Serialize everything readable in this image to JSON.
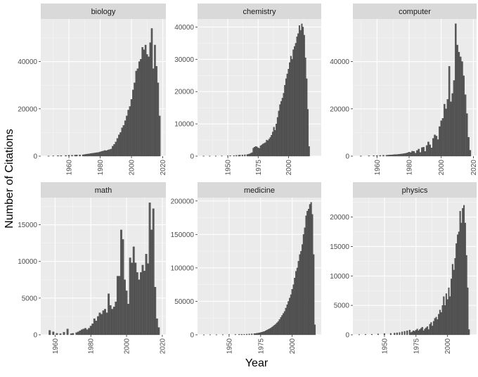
{
  "chart_data": {
    "type": "bar",
    "xlabel": "Year",
    "ylabel": "Number of Citations",
    "grid": true,
    "facets": [
      {
        "name": "biology",
        "xlim": [
          1942,
          2022
        ],
        "ylim": [
          0,
          58000
        ],
        "x_ticks": [
          1960,
          1980,
          2000,
          2020
        ],
        "y_ticks": [
          0,
          20000,
          40000
        ],
        "x": [
          1947,
          1950,
          1953,
          1955,
          1958,
          1960,
          1962,
          1964,
          1965,
          1967,
          1969,
          1970,
          1971,
          1972,
          1973,
          1974,
          1975,
          1976,
          1977,
          1978,
          1979,
          1980,
          1981,
          1982,
          1983,
          1984,
          1985,
          1986,
          1987,
          1988,
          1989,
          1990,
          1991,
          1992,
          1993,
          1994,
          1995,
          1996,
          1997,
          1998,
          1999,
          2000,
          2001,
          2002,
          2003,
          2004,
          2005,
          2006,
          2007,
          2008,
          2009,
          2010,
          2011,
          2012,
          2013,
          2014,
          2015,
          2016,
          2017,
          2018
        ],
        "values": [
          100,
          150,
          200,
          250,
          300,
          350,
          400,
          450,
          500,
          550,
          600,
          700,
          800,
          900,
          1000,
          1100,
          1200,
          1300,
          1400,
          1500,
          1600,
          1800,
          2000,
          2200,
          2400,
          2300,
          2600,
          2800,
          3000,
          4200,
          5000,
          6000,
          7500,
          9000,
          10000,
          12000,
          13000,
          15000,
          17000,
          19500,
          21000,
          24000,
          28000,
          31000,
          36000,
          37000,
          40000,
          41000,
          46000,
          45000,
          47000,
          43000,
          42000,
          48000,
          54000,
          37000,
          47000,
          38000,
          31000,
          17000
        ]
      },
      {
        "name": "chemistry",
        "xlim": [
          1925,
          2027
        ],
        "ylim": [
          0,
          42500
        ],
        "x_ticks": [
          1950,
          1975,
          2000
        ],
        "y_ticks": [
          0,
          10000,
          20000,
          30000,
          40000
        ],
        "x": [
          1930,
          1935,
          1940,
          1945,
          1950,
          1952,
          1955,
          1957,
          1959,
          1960,
          1962,
          1964,
          1966,
          1967,
          1968,
          1969,
          1970,
          1971,
          1972,
          1973,
          1974,
          1975,
          1976,
          1977,
          1978,
          1979,
          1980,
          1981,
          1982,
          1983,
          1984,
          1985,
          1986,
          1987,
          1988,
          1989,
          1990,
          1991,
          1992,
          1993,
          1994,
          1995,
          1996,
          1997,
          1998,
          1999,
          2000,
          2001,
          2002,
          2003,
          2004,
          2005,
          2006,
          2007,
          2008,
          2009,
          2010,
          2011,
          2012,
          2013,
          2014,
          2015,
          2016,
          2017
        ],
        "values": [
          50,
          60,
          80,
          100,
          120,
          150,
          200,
          250,
          300,
          350,
          400,
          450,
          500,
          600,
          700,
          900,
          1100,
          2500,
          2800,
          3000,
          2900,
          2600,
          2400,
          3200,
          3500,
          3800,
          4000,
          4200,
          5000,
          4800,
          5300,
          5800,
          6500,
          7500,
          9000,
          8000,
          10000,
          12000,
          14000,
          16000,
          17000,
          18000,
          19500,
          22000,
          24000,
          25500,
          27000,
          29000,
          31000,
          30000,
          33000,
          34000,
          35000,
          37000,
          38000,
          40500,
          39000,
          41000,
          40000,
          37500,
          30500,
          24000,
          14500,
          3000
        ]
      },
      {
        "name": "computer",
        "xlim": [
          1945,
          2022
        ],
        "ylim": [
          0,
          58000
        ],
        "x_ticks": [
          1960,
          1980,
          2000,
          2020
        ],
        "y_ticks": [
          0,
          20000,
          40000
        ],
        "x": [
          1950,
          1955,
          1958,
          1960,
          1962,
          1964,
          1966,
          1967,
          1968,
          1969,
          1970,
          1971,
          1972,
          1973,
          1974,
          1975,
          1976,
          1977,
          1978,
          1979,
          1980,
          1981,
          1982,
          1983,
          1984,
          1985,
          1986,
          1987,
          1988,
          1989,
          1990,
          1991,
          1992,
          1993,
          1994,
          1995,
          1996,
          1997,
          1998,
          1999,
          2000,
          2001,
          2002,
          2003,
          2004,
          2005,
          2006,
          2007,
          2008,
          2009,
          2010,
          2011,
          2012,
          2013,
          2014,
          2015,
          2016,
          2017,
          2018
        ],
        "values": [
          100,
          150,
          200,
          250,
          300,
          350,
          400,
          450,
          500,
          550,
          600,
          650,
          700,
          750,
          800,
          900,
          1000,
          1100,
          1200,
          1400,
          1700,
          1500,
          2100,
          2000,
          1300,
          2400,
          3000,
          1600,
          3600,
          3800,
          2000,
          4500,
          6000,
          4800,
          3500,
          7500,
          9000,
          8500,
          7000,
          12500,
          15000,
          16000,
          22000,
          20000,
          24000,
          38000,
          23000,
          26500,
          32000,
          56000,
          47000,
          44000,
          42000,
          40000,
          34000,
          26000,
          18000,
          8000,
          2500
        ]
      },
      {
        "name": "math",
        "xlim": [
          1952,
          2022
        ],
        "ylim": [
          0,
          18700
        ],
        "x_ticks": [
          1960,
          1980,
          2000,
          2020
        ],
        "y_ticks": [
          0,
          5000,
          10000,
          15000
        ],
        "x": [
          1957,
          1959,
          1961,
          1963,
          1965,
          1967,
          1969,
          1970,
          1972,
          1973,
          1974,
          1975,
          1976,
          1977,
          1978,
          1979,
          1980,
          1981,
          1982,
          1983,
          1984,
          1985,
          1986,
          1987,
          1988,
          1989,
          1990,
          1991,
          1992,
          1993,
          1994,
          1995,
          1996,
          1997,
          1998,
          1999,
          2000,
          2001,
          2002,
          2003,
          2004,
          2005,
          2006,
          2007,
          2008,
          2009,
          2010,
          2011,
          2012,
          2013,
          2014,
          2015,
          2016,
          2017,
          2018
        ],
        "values": [
          600,
          400,
          200,
          150,
          350,
          800,
          150,
          200,
          300,
          400,
          550,
          700,
          800,
          900,
          700,
          900,
          1200,
          1500,
          2200,
          1900,
          2500,
          3000,
          2800,
          3300,
          3500,
          3000,
          5600,
          4000,
          3500,
          3800,
          4500,
          8000,
          8000,
          14300,
          13000,
          7500,
          6000,
          4200,
          10500,
          9800,
          12000,
          9800,
          8500,
          7500,
          8500,
          9500,
          8700,
          11000,
          9700,
          18000,
          14300,
          17200,
          6500,
          2200,
          1000
        ]
      },
      {
        "name": "medicine",
        "xlim": [
          1925,
          2023
        ],
        "ylim": [
          0,
          205000
        ],
        "x_ticks": [
          1950,
          1975,
          2000
        ],
        "y_ticks": [
          0,
          50000,
          100000,
          150000,
          200000
        ],
        "x": [
          1930,
          1935,
          1940,
          1945,
          1950,
          1955,
          1958,
          1960,
          1962,
          1964,
          1966,
          1968,
          1970,
          1971,
          1972,
          1973,
          1974,
          1975,
          1976,
          1977,
          1978,
          1979,
          1980,
          1981,
          1982,
          1983,
          1984,
          1985,
          1986,
          1987,
          1988,
          1989,
          1990,
          1991,
          1992,
          1993,
          1994,
          1995,
          1996,
          1997,
          1998,
          1999,
          2000,
          2001,
          2002,
          2003,
          2004,
          2005,
          2006,
          2007,
          2008,
          2009,
          2010,
          2011,
          2012,
          2013,
          2014,
          2015,
          2016,
          2017,
          2018
        ],
        "values": [
          100,
          200,
          300,
          400,
          500,
          600,
          700,
          800,
          900,
          1000,
          1200,
          1500,
          1800,
          2000,
          2300,
          2600,
          3000,
          3500,
          4000,
          4500,
          5000,
          6000,
          7000,
          8000,
          9000,
          10000,
          11500,
          13000,
          14500,
          16000,
          18000,
          20000,
          23000,
          26000,
          29000,
          32000,
          35000,
          40000,
          45000,
          50000,
          55000,
          60000,
          68000,
          75000,
          85000,
          95000,
          100000,
          110000,
          120000,
          125000,
          135000,
          150000,
          160000,
          178000,
          185000,
          188000,
          195000,
          198000,
          180000,
          120000,
          15000
        ]
      },
      {
        "name": "physics",
        "xlim": [
          1925,
          2023
        ],
        "ylim": [
          0,
          23300
        ],
        "x_ticks": [
          1950,
          1975,
          2000
        ],
        "y_ticks": [
          0,
          5000,
          10000,
          15000,
          20000
        ],
        "x": [
          1930,
          1935,
          1940,
          1945,
          1950,
          1955,
          1958,
          1960,
          1962,
          1964,
          1966,
          1968,
          1970,
          1971,
          1972,
          1973,
          1974,
          1975,
          1976,
          1977,
          1978,
          1979,
          1980,
          1981,
          1982,
          1983,
          1984,
          1985,
          1986,
          1987,
          1988,
          1989,
          1990,
          1991,
          1992,
          1993,
          1994,
          1995,
          1996,
          1997,
          1998,
          1999,
          2000,
          2001,
          2002,
          2003,
          2004,
          2005,
          2006,
          2007,
          2008,
          2009,
          2010,
          2011,
          2012,
          2013,
          2014,
          2015,
          2016,
          2017
        ],
        "values": [
          50,
          80,
          100,
          150,
          200,
          250,
          300,
          350,
          400,
          500,
          600,
          700,
          800,
          400,
          500,
          700,
          600,
          800,
          1000,
          700,
          900,
          1100,
          1300,
          700,
          1000,
          1200,
          1400,
          900,
          1800,
          2100,
          1500,
          2300,
          2800,
          3000,
          2600,
          3500,
          4200,
          3800,
          5000,
          6500,
          5000,
          7000,
          6000,
          8000,
          6500,
          9500,
          12000,
          11000,
          13000,
          15500,
          17000,
          17500,
          21000,
          19000,
          21500,
          22000,
          19000,
          13500,
          8000,
          900
        ]
      }
    ]
  }
}
